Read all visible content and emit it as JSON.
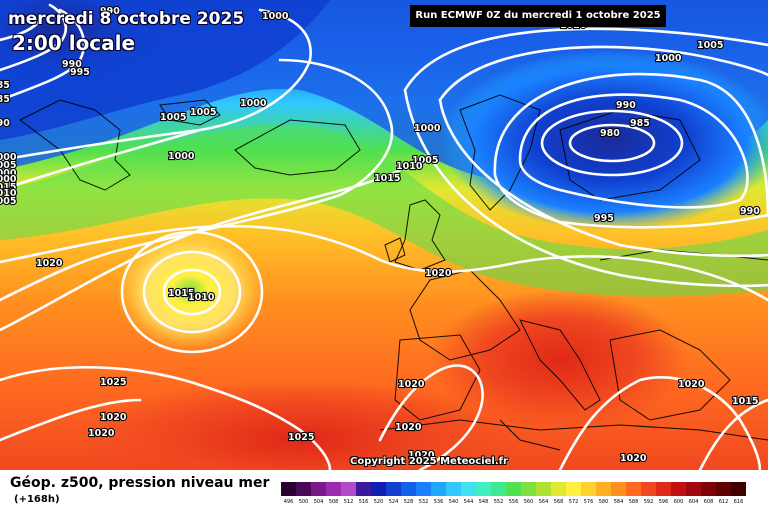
{
  "title": "mercredi 8 octobre 2025",
  "subtitle": "2:00 locale",
  "run_label": "Run ECMWF 0Z du mercredi 1 octobre 2025",
  "copyright": "Copyright 2025 Meteociel.fr",
  "legend": {
    "title": "Géop. z500, pression niveau mer",
    "lead": "(+168h)",
    "values": [
      "496",
      "500",
      "504",
      "508",
      "512",
      "516",
      "520",
      "524",
      "528",
      "532",
      "536",
      "540",
      "544",
      "548",
      "552",
      "556",
      "560",
      "564",
      "568",
      "572",
      "576",
      "580",
      "584",
      "588",
      "592",
      "596",
      "600",
      "604",
      "608",
      "612",
      "616"
    ],
    "colors": [
      "#2a0030",
      "#4a0a56",
      "#7a1a8a",
      "#9a2ab0",
      "#b04ac8",
      "#3a1a9a",
      "#1020b0",
      "#1040d0",
      "#1060e8",
      "#1a80ff",
      "#20a8ff",
      "#30c8ff",
      "#40e0f0",
      "#40f0c0",
      "#40e890",
      "#50e050",
      "#80e040",
      "#b0e030",
      "#e0e830",
      "#fff040",
      "#ffd030",
      "#ffb020",
      "#ff9020",
      "#ff6a20",
      "#f04820",
      "#e02818",
      "#c01010",
      "#a00810",
      "#800008",
      "#600000",
      "#400000"
    ]
  },
  "pressure_labels": [
    {
      "text": "1000"
    },
    {
      "text": "990"
    },
    {
      "text": "990"
    },
    {
      "text": "995"
    },
    {
      "text": "985"
    },
    {
      "text": "985"
    },
    {
      "text": "990"
    },
    {
      "text": "1000"
    },
    {
      "text": "1005"
    },
    {
      "text": "1005"
    },
    {
      "text": "1005"
    },
    {
      "text": "1000"
    },
    {
      "text": "1000"
    },
    {
      "text": "1000"
    },
    {
      "text": "1000"
    },
    {
      "text": "1005"
    },
    {
      "text": "1010"
    },
    {
      "text": "1015"
    },
    {
      "text": "1015"
    },
    {
      "text": "1020"
    },
    {
      "text": "1015"
    },
    {
      "text": "1010"
    },
    {
      "text": "1020"
    },
    {
      "text": "1025"
    },
    {
      "text": "1020"
    },
    {
      "text": "1020"
    },
    {
      "text": "1020"
    },
    {
      "text": "1020"
    },
    {
      "text": "1025"
    },
    {
      "text": "1020"
    },
    {
      "text": "1020"
    },
    {
      "text": "1020"
    },
    {
      "text": "1020"
    },
    {
      "text": "1015"
    },
    {
      "text": "1000"
    },
    {
      "text": "1005"
    },
    {
      "text": "1000"
    },
    {
      "text": "990"
    },
    {
      "text": "985"
    },
    {
      "text": "980"
    },
    {
      "text": "995"
    },
    {
      "text": "990"
    },
    {
      "text": "1010"
    },
    {
      "text": "1005"
    }
  ]
}
